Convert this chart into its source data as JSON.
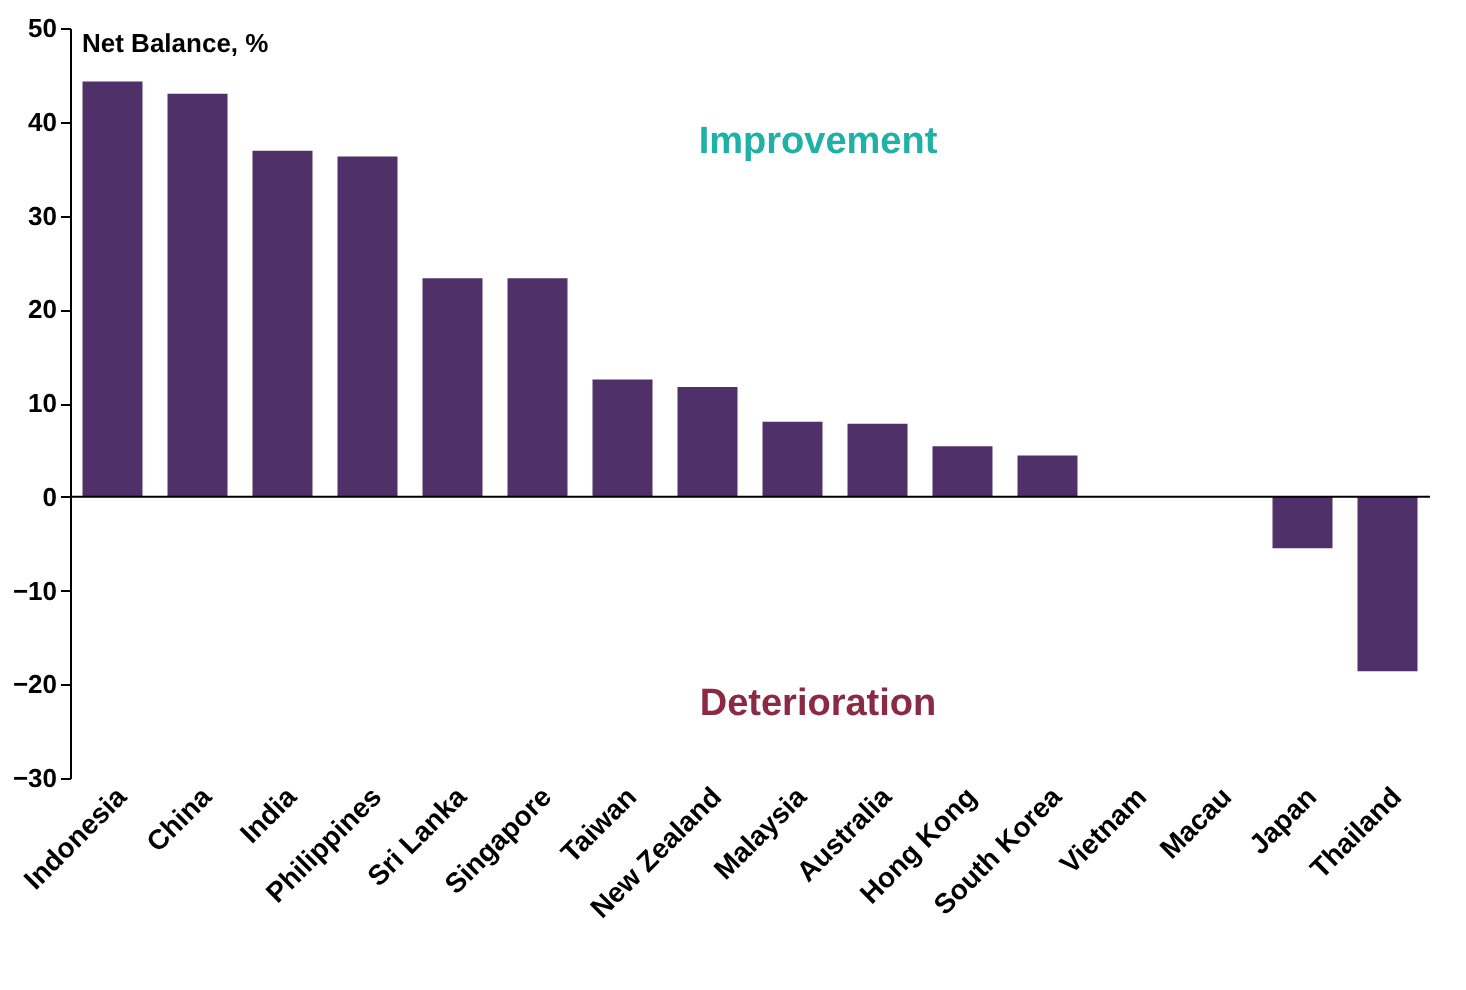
{
  "chart_data": {
    "type": "bar",
    "ylabel": "Net Balance, %",
    "categories": [
      "Indonesia",
      "China",
      "India",
      "Philippines",
      "Sri Lanka",
      "Singapore",
      "Taiwan",
      "New Zealand",
      "Malaysia",
      "Australia",
      "Hong Kong",
      "South Korea",
      "Vietnam",
      "Macau",
      "Japan",
      "Thailand"
    ],
    "values": [
      44.3,
      43,
      36.9,
      36.3,
      23.3,
      23.3,
      12.5,
      11.7,
      8,
      7.8,
      5.4,
      4.4,
      0,
      0,
      -5.5,
      -18.6
    ],
    "color": "#4f3068",
    "ylim": [
      -30,
      50
    ],
    "yticks": [
      -30,
      -20,
      -10,
      0,
      10,
      20,
      30,
      40,
      50
    ],
    "annotations": [
      "Improvement",
      "Deterioration"
    ]
  }
}
